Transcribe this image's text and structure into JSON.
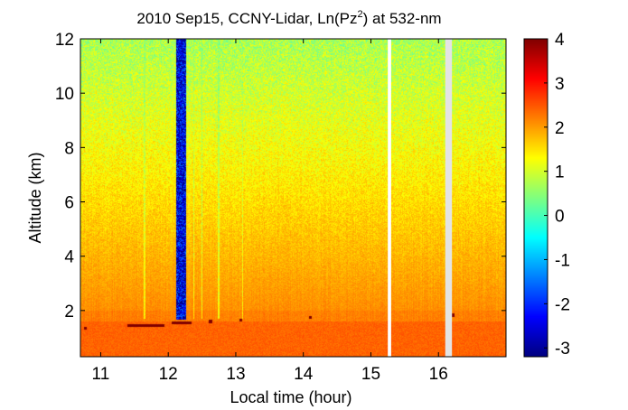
{
  "chart_data": {
    "type": "heatmap",
    "title": "2010 Sep15, CCNY-Lidar, Ln(Pz",
    "title_sup": "2",
    "title_tail": ") at 532-nm",
    "xlabel": "Local time (hour)",
    "ylabel": "Altitude (km)",
    "xlim": [
      10.7,
      17.0
    ],
    "ylim": [
      0.3,
      12.0
    ],
    "xticks": [
      11,
      12,
      13,
      14,
      15,
      16
    ],
    "yticks": [
      2,
      4,
      6,
      8,
      10,
      12
    ],
    "colorbar": {
      "colormap": "jet",
      "range": [
        -3.2,
        4.0
      ],
      "ticks": [
        -3,
        -2,
        -1,
        0,
        1,
        2,
        3,
        4
      ]
    },
    "field": {
      "boundary_layer_top_km": 1.6,
      "boundary_layer_value": 2.4,
      "value_near_2km": 2.1,
      "value_at_12km": 0.7,
      "cloud_layer_value": 4.0,
      "cloud_segments": [
        {
          "x": [
            10.75,
            10.8
          ],
          "z": 1.35
        },
        {
          "x": [
            11.4,
            11.95
          ],
          "z": 1.45
        },
        {
          "x": [
            12.05,
            12.35
          ],
          "z": 1.55
        },
        {
          "x": [
            12.6,
            12.65
          ],
          "z": 1.6
        },
        {
          "x": [
            13.05,
            13.1
          ],
          "z": 1.65
        },
        {
          "x": [
            14.08,
            14.12
          ],
          "z": 1.75
        },
        {
          "x": [
            16.2,
            16.24
          ],
          "z": 1.82
        }
      ],
      "low_signal_column": {
        "x": [
          12.12,
          12.27
        ],
        "z_bottom": 1.65,
        "value": -2.5
      },
      "streaks": [
        {
          "x": 11.65,
          "value": 0.3
        },
        {
          "x": 12.38,
          "value": 0.2
        },
        {
          "x": 12.5,
          "value": -0.2
        },
        {
          "x": 12.75,
          "value": 0.0
        },
        {
          "x": 13.1,
          "value": 0.3
        }
      ],
      "missing_data_columns": [
        {
          "x": [
            15.25,
            15.3
          ]
        },
        {
          "x": [
            16.1,
            16.2
          ]
        }
      ]
    }
  }
}
